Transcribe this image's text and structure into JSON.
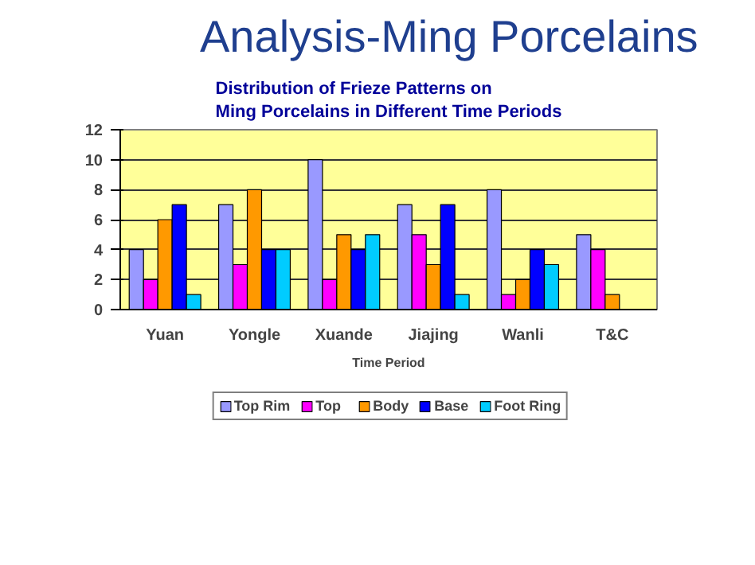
{
  "chart_data": {
    "type": "bar",
    "title": "Analysis-Ming Porcelains",
    "subtitle": "Distribution of Frieze Patterns on\nMing Porcelains in Different Time Periods",
    "xlabel": "Time Period",
    "categories": [
      "Yuan",
      "Yongle",
      "Xuande",
      "Jiajing",
      "Wanli",
      "T&C"
    ],
    "series": [
      {
        "name": "Top Rim",
        "color": "#9999ff",
        "values": [
          4,
          7,
          10,
          7,
          8,
          5
        ]
      },
      {
        "name": "Top",
        "color": "#ff00ff",
        "values": [
          2,
          3,
          2,
          5,
          1,
          4
        ]
      },
      {
        "name": "Body",
        "color": "#ff9900",
        "values": [
          6,
          8,
          5,
          3,
          2,
          1
        ]
      },
      {
        "name": "Base",
        "color": "#0000ff",
        "values": [
          7,
          4,
          4,
          7,
          4,
          null
        ]
      },
      {
        "name": "Foot Ring",
        "color": "#00ccff",
        "values": [
          1,
          4,
          5,
          1,
          3,
          null
        ]
      }
    ],
    "ylim": [
      0,
      12
    ],
    "yticks": [
      0,
      2,
      4,
      6,
      8,
      10,
      12
    ],
    "grid": "y",
    "legend": "bottom"
  }
}
